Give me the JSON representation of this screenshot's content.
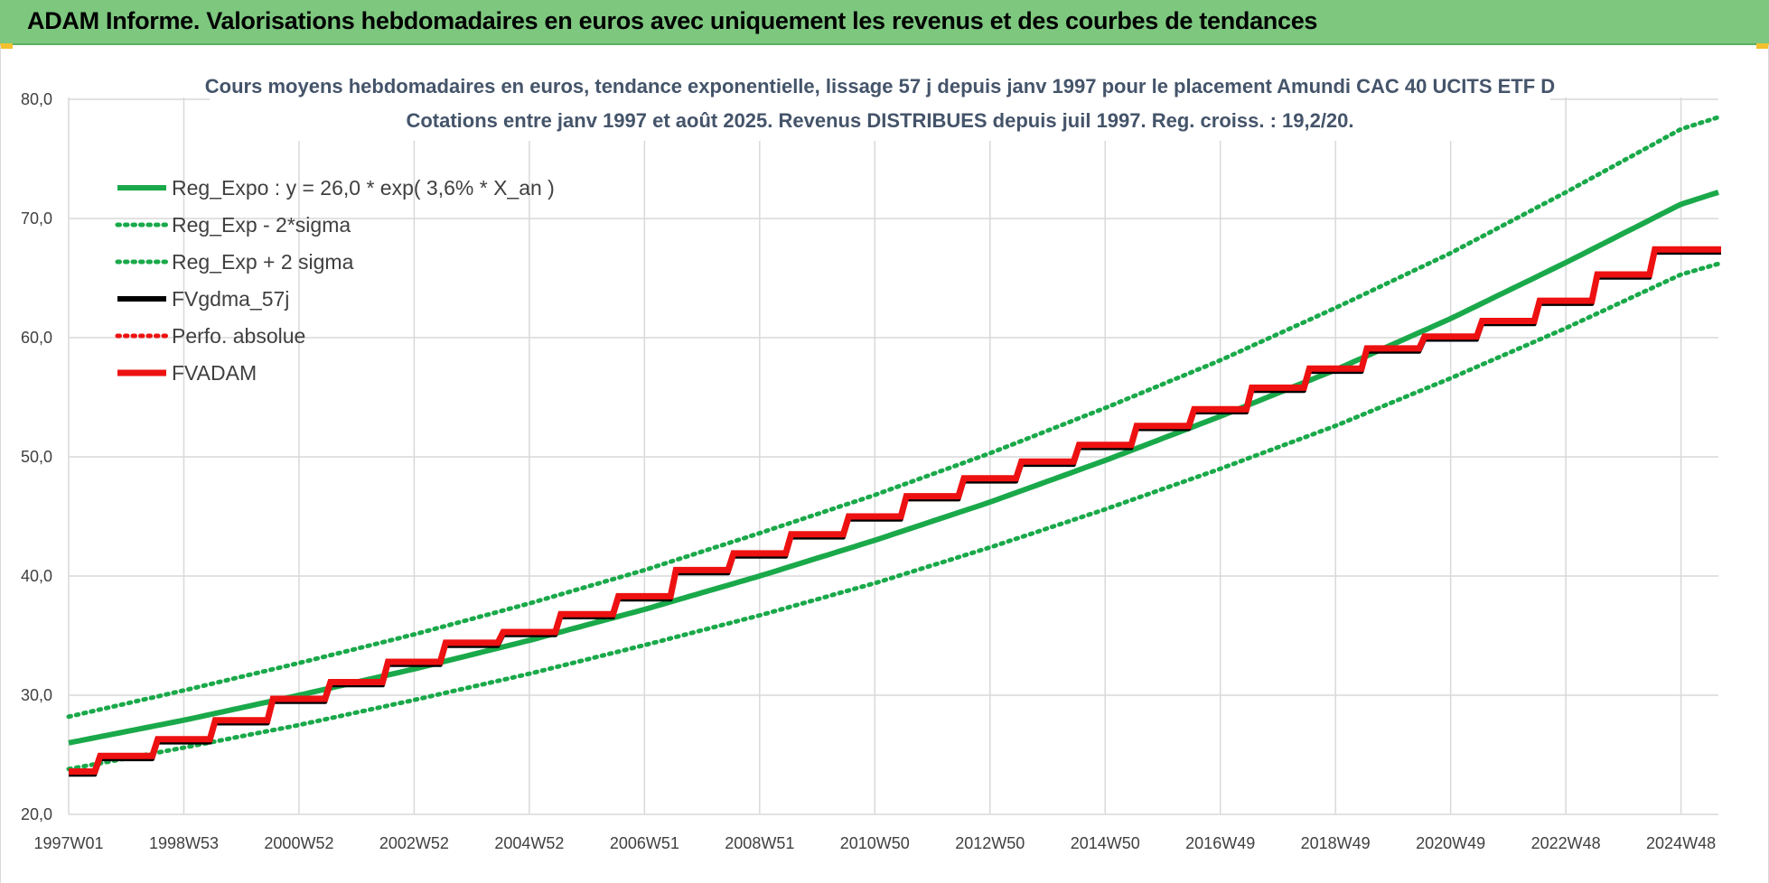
{
  "header": {
    "title": "ADAM Informe. Valorisations hebdomadaires en euros avec uniquement les revenus et des courbes de tendances"
  },
  "colors": {
    "header_bg": "#7dc77f",
    "trend": "#1aa94a",
    "nav": "#000000",
    "adam": "#ee1111",
    "grid": "#d9d9d9"
  },
  "chart_data": {
    "type": "line",
    "title_lines": [
      "Cours moyens hebdomadaires en euros, tendance exponentielle, lissage 57 j depuis janv 1997  pour le placement Amundi CAC 40 UCITS ETF D",
      "Cotations entre janv 1997 et août 2025.  Revenus DISTRIBUES depuis juil 1997.  Reg. croiss. : 19,2/20."
    ],
    "ylim": [
      20,
      80
    ],
    "y_ticks": [
      "20,0",
      "30,0",
      "40,0",
      "50,0",
      "60,0",
      "70,0",
      "80,0"
    ],
    "y_tick_values": [
      20,
      30,
      40,
      50,
      60,
      70,
      80
    ],
    "x_range_years": [
      1997.0,
      2025.65
    ],
    "x_ticks": [
      {
        "label": "1997W01",
        "year": 1997.0
      },
      {
        "label": "1998W53",
        "year": 1999.0
      },
      {
        "label": "2000W52",
        "year": 2001.0
      },
      {
        "label": "2002W52",
        "year": 2003.0
      },
      {
        "label": "2004W52",
        "year": 2005.0
      },
      {
        "label": "2006W51",
        "year": 2007.0
      },
      {
        "label": "2008W51",
        "year": 2009.0
      },
      {
        "label": "2010W50",
        "year": 2011.0
      },
      {
        "label": "2012W50",
        "year": 2013.0
      },
      {
        "label": "2014W50",
        "year": 2015.0
      },
      {
        "label": "2016W49",
        "year": 2017.0
      },
      {
        "label": "2018W49",
        "year": 2019.0
      },
      {
        "label": "2020W49",
        "year": 2021.0
      },
      {
        "label": "2022W48",
        "year": 2023.0
      },
      {
        "label": "2024W48",
        "year": 2025.0
      }
    ],
    "grid": true,
    "legend_position": "top-left",
    "series": [
      {
        "name": "Reg_Expo : y = 26,0 * exp( 3,6% *  X_an )",
        "style": "solid",
        "color": "#1aa94a",
        "x": [
          1997.0,
          1999.0,
          2001.0,
          2003.0,
          2005.0,
          2007.0,
          2009.0,
          2011.0,
          2013.0,
          2015.0,
          2017.0,
          2019.0,
          2021.0,
          2023.0,
          2025.0,
          2025.65
        ],
        "y": [
          26.0,
          27.9,
          30.0,
          32.2,
          34.6,
          37.2,
          40.0,
          43.0,
          46.2,
          49.7,
          53.4,
          57.3,
          61.6,
          66.3,
          71.2,
          72.2
        ]
      },
      {
        "name": "Reg_Exp - 2*sigma",
        "style": "dotted",
        "color": "#1aa94a",
        "x": [
          1997.0,
          1999.0,
          2001.0,
          2003.0,
          2005.0,
          2007.0,
          2009.0,
          2011.0,
          2013.0,
          2015.0,
          2017.0,
          2019.0,
          2021.0,
          2023.0,
          2025.0,
          2025.65
        ],
        "y": [
          23.8,
          25.6,
          27.5,
          29.6,
          31.8,
          34.2,
          36.7,
          39.4,
          42.4,
          45.6,
          49.0,
          52.6,
          56.6,
          60.8,
          65.3,
          66.2
        ]
      },
      {
        "name": "Reg_Exp + 2 sigma",
        "style": "dotted",
        "color": "#1aa94a",
        "x": [
          1997.0,
          1999.0,
          2001.0,
          2003.0,
          2005.0,
          2007.0,
          2009.0,
          2011.0,
          2013.0,
          2015.0,
          2017.0,
          2019.0,
          2021.0,
          2023.0,
          2025.0,
          2025.65
        ],
        "y": [
          28.2,
          30.4,
          32.7,
          35.1,
          37.7,
          40.5,
          43.6,
          46.8,
          50.3,
          54.1,
          58.1,
          62.5,
          67.1,
          72.2,
          77.5,
          78.5
        ]
      },
      {
        "name": "FVgdma_57j",
        "style": "solid",
        "color": "#000000",
        "offset": -0.25
      },
      {
        "name": "Perfo. absolue",
        "style": "dotted",
        "color": "#ee1111"
      },
      {
        "name": "FVADAM",
        "style": "step",
        "color": "#ee1111",
        "x": [
          1997.0,
          1997.5,
          1998.5,
          1999.5,
          2000.5,
          2001.5,
          2002.5,
          2003.5,
          2004.5,
          2005.5,
          2006.5,
          2007.5,
          2008.5,
          2009.5,
          2010.5,
          2011.5,
          2012.5,
          2013.5,
          2014.5,
          2015.5,
          2016.5,
          2017.5,
          2018.5,
          2019.5,
          2020.5,
          2021.5,
          2022.5,
          2023.5,
          2024.5,
          2025.65
        ],
        "y": [
          23.6,
          24.9,
          26.3,
          27.9,
          29.7,
          31.1,
          32.8,
          34.4,
          35.3,
          36.8,
          38.3,
          40.5,
          41.9,
          43.5,
          45.0,
          46.7,
          48.2,
          49.6,
          51.0,
          52.6,
          54.0,
          55.8,
          57.4,
          59.1,
          60.1,
          61.4,
          63.1,
          65.3,
          67.4,
          67.4
        ]
      }
    ]
  }
}
